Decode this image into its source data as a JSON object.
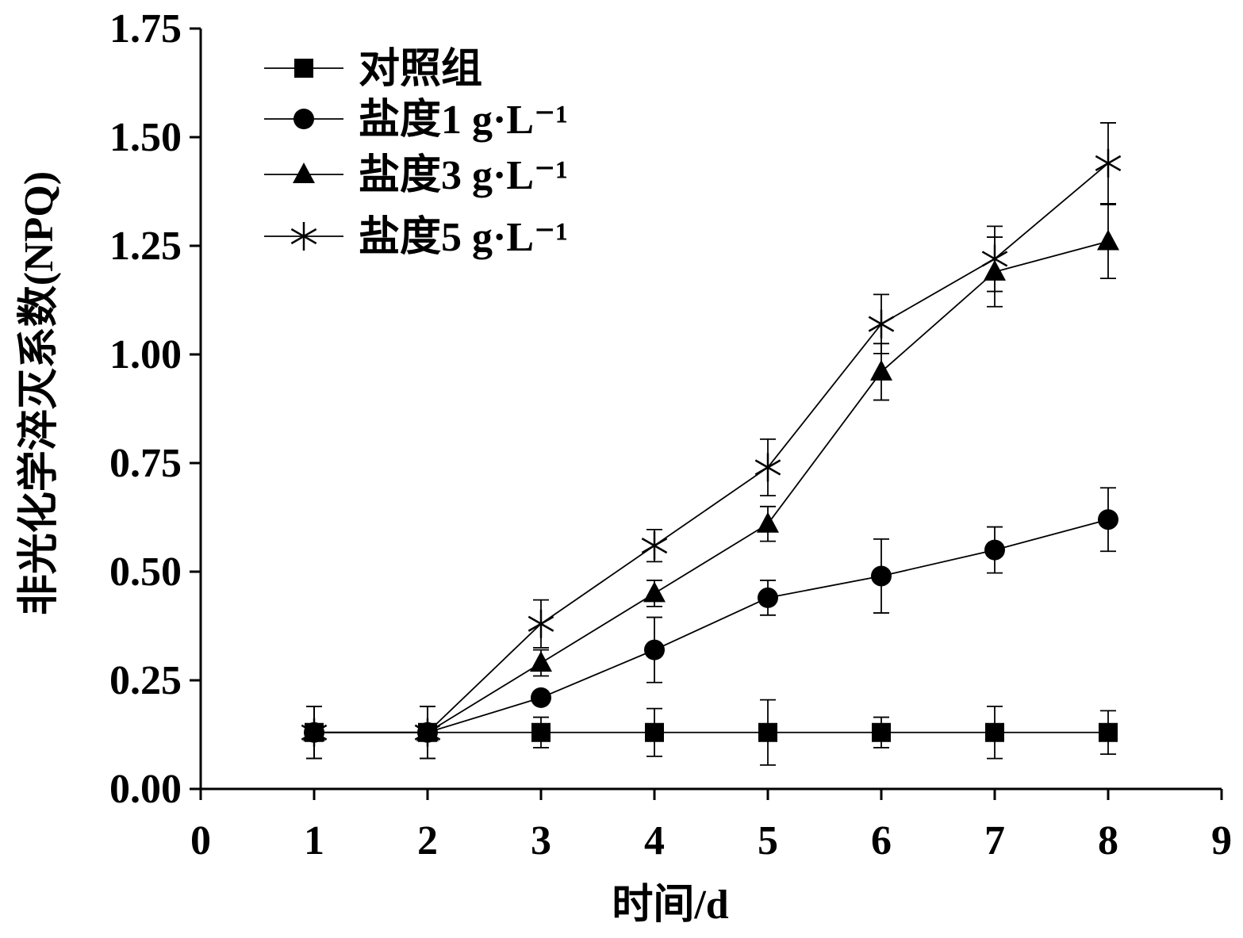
{
  "chart_data": {
    "type": "line",
    "xlabel": "时间/d",
    "ylabel": "非光化学淬灭系数(NPQ)",
    "xlim": [
      0,
      9
    ],
    "ylim": [
      0,
      1.75
    ],
    "xticks": [
      "0",
      "1",
      "2",
      "3",
      "4",
      "5",
      "6",
      "7",
      "8",
      "9"
    ],
    "yticks": [
      "0.00",
      "0.25",
      "0.50",
      "0.75",
      "1.00",
      "1.25",
      "1.50",
      "1.75"
    ],
    "grid": false,
    "legend_position": "top-left",
    "x": [
      1,
      2,
      3,
      4,
      5,
      6,
      7,
      8
    ],
    "series": [
      {
        "name": "对照组",
        "marker": "square",
        "values": [
          0.13,
          0.13,
          0.13,
          0.13,
          0.13,
          0.13,
          0.13,
          0.13
        ],
        "errors": [
          0.06,
          0.06,
          0.035,
          0.055,
          0.075,
          0.035,
          0.06,
          0.05
        ]
      },
      {
        "name": "盐度1 g·L⁻¹",
        "marker": "circle",
        "values": [
          0.13,
          0.13,
          0.21,
          0.32,
          0.44,
          0.49,
          0.55,
          0.62
        ],
        "errors": [
          0.06,
          0.06,
          0.0,
          0.075,
          0.04,
          0.085,
          0.053,
          0.073
        ]
      },
      {
        "name": "盐度3 g·L⁻¹",
        "marker": "triangle",
        "values": [
          0.13,
          0.13,
          0.29,
          0.45,
          0.61,
          0.96,
          1.19,
          1.26
        ],
        "errors": [
          0.06,
          0.06,
          0.03,
          0.03,
          0.04,
          0.065,
          0.08,
          0.085
        ]
      },
      {
        "name": "盐度5 g·L⁻¹",
        "marker": "star",
        "values": [
          0.13,
          0.13,
          0.38,
          0.56,
          0.74,
          1.07,
          1.22,
          1.44
        ],
        "errors": [
          0.06,
          0.06,
          0.055,
          0.037,
          0.065,
          0.068,
          0.075,
          0.093
        ]
      }
    ]
  }
}
